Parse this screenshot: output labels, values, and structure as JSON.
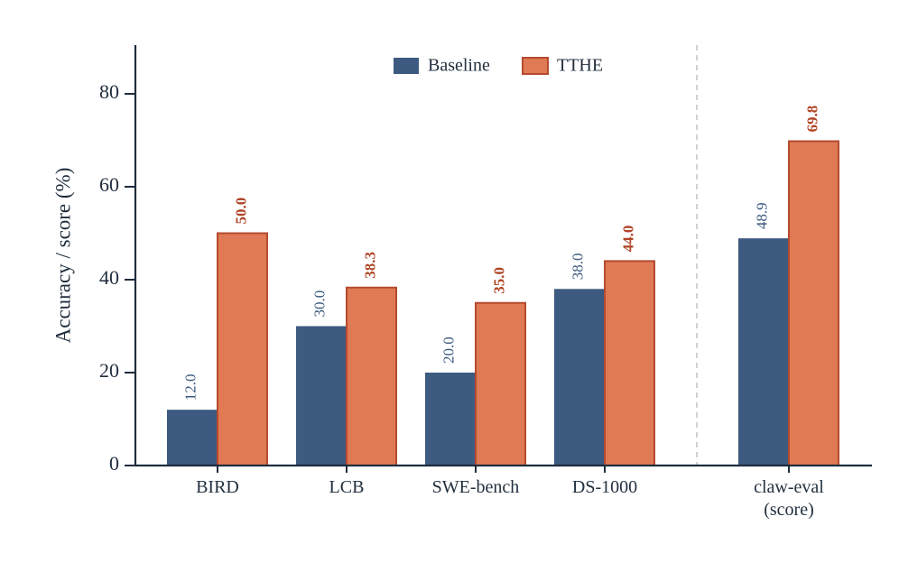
{
  "chart_data": {
    "type": "bar",
    "categories": [
      "BIRD",
      "LCB",
      "SWE-bench",
      "DS-1000",
      [
        "claw-eval",
        "(score)"
      ]
    ],
    "series": [
      {
        "name": "Baseline",
        "values": [
          12.0,
          30.0,
          20.0,
          38.0,
          48.9
        ],
        "labels": [
          "12.0",
          "30.0",
          "20.0",
          "38.0",
          "48.9"
        ]
      },
      {
        "name": "TTHE",
        "values": [
          50.0,
          38.3,
          35.0,
          44.0,
          69.8
        ],
        "labels": [
          "50.0",
          "38.3",
          "35.0",
          "44.0",
          "69.8"
        ]
      }
    ],
    "ylabel": "Accuracy / score (%)",
    "xlabel": "",
    "ylim": [
      0,
      90
    ],
    "yticks": [
      "0",
      "20",
      "40",
      "60",
      "80"
    ],
    "legend_position": "top-center",
    "grid": false,
    "separator": "dashed vertical line between DS-1000 and claw-eval"
  },
  "colors": {
    "baseline": "#3d5a80",
    "tthe": "#e07a54",
    "tthe_edge": "#b54a2f",
    "tthe_label": "#b04526",
    "baseline_label": "#3d5a80",
    "axis": "#1f2d3d",
    "separator": "#cfd3d6"
  }
}
